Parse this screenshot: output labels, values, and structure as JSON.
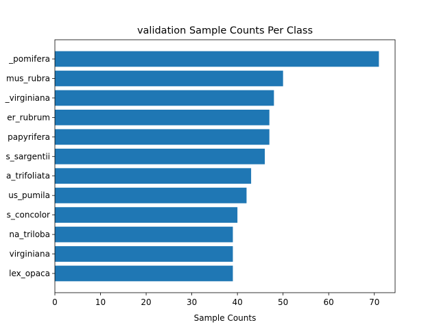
{
  "chart_data": {
    "type": "bar",
    "orientation": "horizontal",
    "title": "validation Sample Counts Per Class",
    "xlabel": "Sample Counts",
    "ylabel": "",
    "categories": [
      "_pomifera",
      "mus_rubra",
      "_virginiana",
      "er_rubrum",
      "papyrifera",
      "s_sargentii",
      "a_trifoliata",
      "us_pumila",
      "s_concolor",
      "na_triloba",
      "virginiana",
      "lex_opaca"
    ],
    "values": [
      71,
      50,
      48,
      47,
      47,
      46,
      43,
      42,
      40,
      39,
      39,
      39
    ],
    "xlim": [
      0,
      74.55
    ],
    "xticks": [
      0,
      10,
      20,
      30,
      40,
      50,
      60,
      70
    ],
    "bar_color": "#1f77b4",
    "grid": false,
    "legend": "none"
  }
}
